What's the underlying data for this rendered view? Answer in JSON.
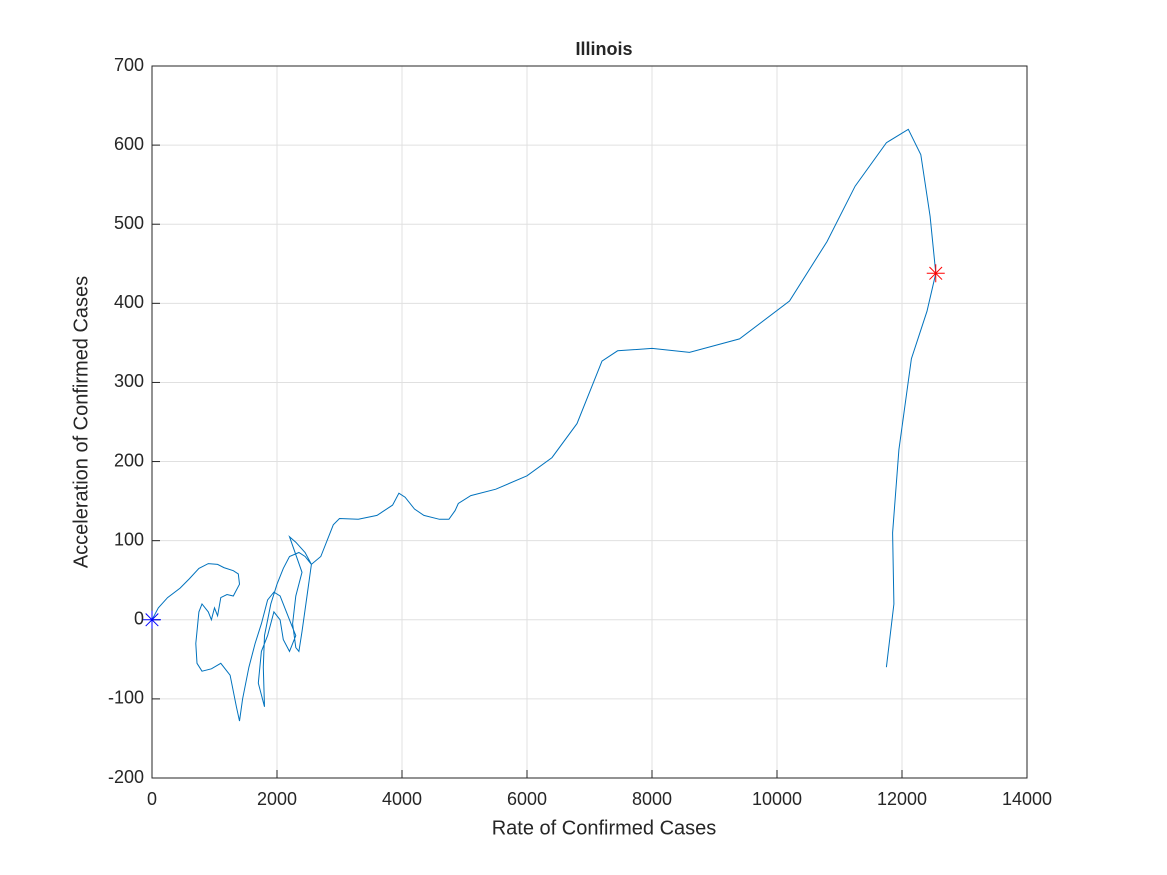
{
  "chart_data": {
    "type": "line",
    "title": "Illinois",
    "xlabel": "Rate of Confirmed Cases",
    "ylabel": "Acceleration of Confirmed Cases",
    "color": "#0072bd",
    "x": [
      0,
      100,
      250,
      450,
      600,
      750,
      900,
      1050,
      1150,
      1300,
      1380,
      1400,
      1300,
      1200,
      1100,
      1050,
      1000,
      950,
      900,
      800,
      750,
      700,
      720,
      800,
      950,
      1100,
      1250,
      1350,
      1400,
      1450,
      1550,
      1650,
      1750,
      1850,
      1950,
      2050,
      2150,
      2250,
      2300,
      2200,
      2100,
      2050,
      1950,
      1850,
      1750,
      1700,
      1750,
      1800,
      1780,
      1800,
      1900,
      2000,
      2100,
      2200,
      2350,
      2450,
      2550,
      2480,
      2400,
      2350,
      2300,
      2250,
      2300,
      2400,
      2200,
      2300,
      2450,
      2550,
      2700,
      2900,
      3000,
      3300,
      3600,
      3850,
      3950,
      4050,
      4200,
      4350,
      4600,
      4750,
      4850,
      4900,
      5100,
      5500,
      6000,
      6400,
      6800,
      7200,
      7450,
      8000,
      8600,
      9400,
      10200,
      10800,
      11250,
      11750,
      12100,
      12300,
      12450,
      12540,
      12400,
      12150,
      11950,
      11850,
      11870,
      11750
    ],
    "y": [
      0,
      15,
      28,
      40,
      52,
      65,
      71,
      70,
      66,
      62,
      58,
      45,
      30,
      32,
      28,
      5,
      15,
      0,
      10,
      20,
      10,
      -30,
      -55,
      -65,
      -62,
      -55,
      -70,
      -110,
      -128,
      -100,
      -60,
      -30,
      -5,
      25,
      35,
      30,
      10,
      -10,
      -20,
      -40,
      -25,
      0,
      10,
      -20,
      -40,
      -80,
      -95,
      -110,
      -60,
      -20,
      20,
      45,
      65,
      80,
      85,
      80,
      70,
      30,
      -15,
      -40,
      -35,
      -5,
      30,
      60,
      105,
      98,
      85,
      70,
      80,
      120,
      128,
      127,
      132,
      145,
      160,
      155,
      140,
      132,
      127,
      127,
      138,
      147,
      157,
      165,
      182,
      205,
      248,
      327,
      340,
      343,
      338,
      355,
      403,
      478,
      548,
      603,
      620,
      588,
      510,
      438,
      390,
      330,
      215,
      110,
      20,
      -60
    ],
    "markers": [
      {
        "x": 0,
        "y": 0,
        "color": "#0000ff"
      },
      {
        "x": 12540,
        "y": 438,
        "color": "#ff0000"
      }
    ],
    "xlim": [
      0,
      14000
    ],
    "ylim": [
      -200,
      700
    ],
    "xticks": [
      0,
      2000,
      4000,
      6000,
      8000,
      10000,
      12000,
      14000
    ],
    "yticks": [
      -200,
      -100,
      0,
      100,
      200,
      300,
      400,
      500,
      600,
      700
    ],
    "grid": true
  }
}
